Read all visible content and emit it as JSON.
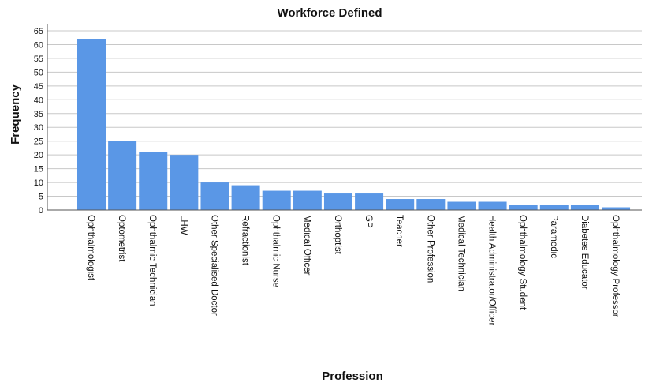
{
  "chart_data": {
    "type": "bar",
    "title": "Workforce Defined",
    "xlabel": "Profession",
    "ylabel": "Frequency",
    "ylim": [
      0,
      65
    ],
    "yticks": [
      0,
      5,
      10,
      15,
      20,
      25,
      30,
      35,
      40,
      45,
      50,
      55,
      60,
      65
    ],
    "grid": true,
    "bar_color": "#5a97e6",
    "categories": [
      "Ophthalmologist",
      "Optometrist",
      "Ophthalmic Technician",
      "LHW",
      "Other Specialised Doctor",
      "Refractionist",
      "Ophthalmic Nurse",
      "Medical Officer",
      "Orthoptist",
      "GP",
      "Teacher",
      "Other Profession",
      "Medical Technician",
      "Health Administrator/Officer",
      "Ophthalmology Student",
      "Paramedic",
      "Diabetes Educator",
      "Ophthalmology Professor"
    ],
    "values": [
      62,
      25,
      21,
      20,
      10,
      9,
      7,
      7,
      6,
      6,
      4,
      4,
      3,
      3,
      2,
      2,
      2,
      1
    ]
  }
}
